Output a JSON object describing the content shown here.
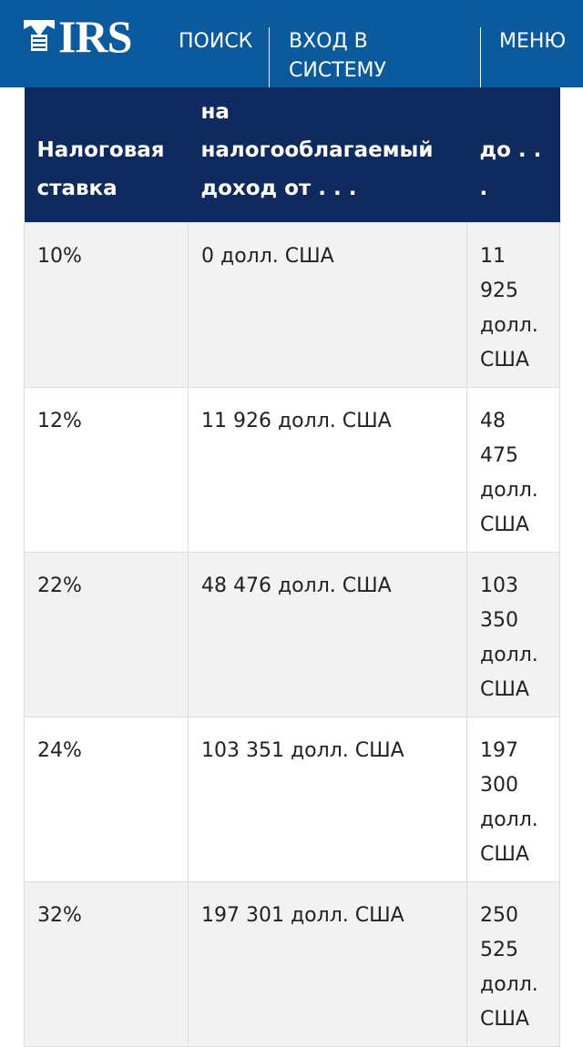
{
  "header": {
    "logo": "IRS",
    "nav": [
      "ПОИСК",
      "ВХОД В СИСТЕМУ",
      "МЕНЮ"
    ]
  },
  "table": {
    "columns": [
      "Налоговая ставка",
      "на налогооблагаемый доход от . . .",
      "до . . ."
    ],
    "rows": [
      [
        "10%",
        "0 долл. США",
        "11 925 долл. США"
      ],
      [
        "12%",
        "11 926 долл. США",
        "48 475 долл. США"
      ],
      [
        "22%",
        "48 476 долл. США",
        "103 350 долл. США"
      ],
      [
        "24%",
        "103 351 долл. США",
        "197 300 долл. США"
      ],
      [
        "32%",
        "197 301 долл. США",
        "250 525 долл. США"
      ]
    ]
  }
}
